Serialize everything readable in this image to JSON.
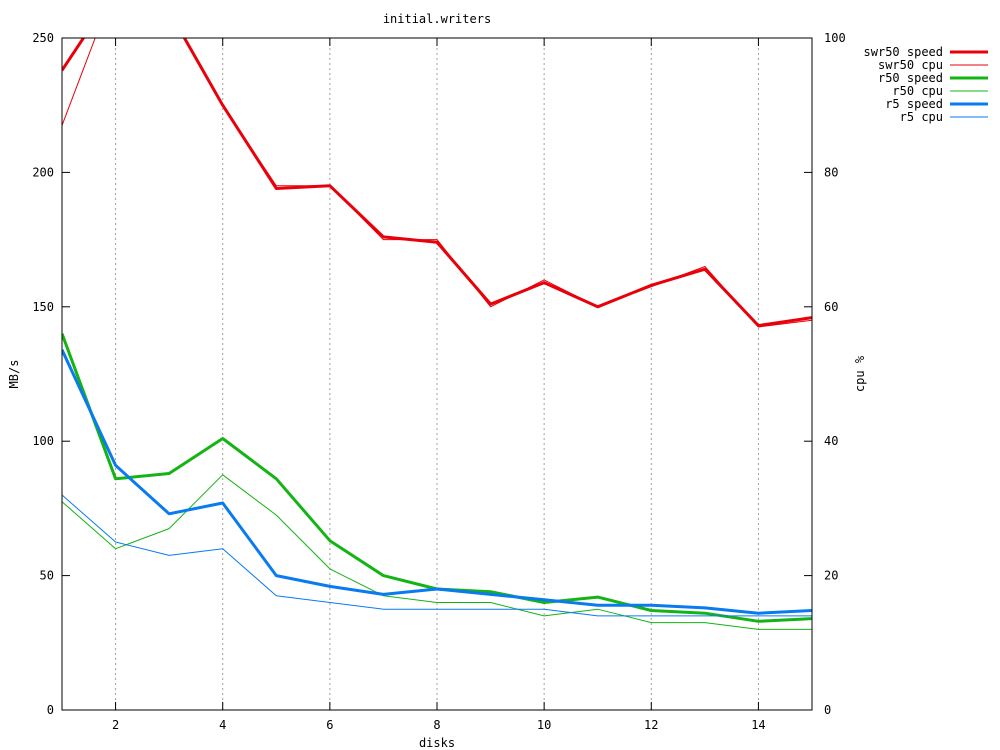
{
  "chart_data": {
    "type": "line",
    "title": "initial.writers",
    "xlabel": "disks",
    "ylabel": "MB/s",
    "y2label": "cpu %",
    "xlim": [
      1,
      15
    ],
    "ylim": [
      0,
      250
    ],
    "y2lim": [
      0,
      100
    ],
    "x_ticks": [
      2,
      4,
      6,
      8,
      10,
      12,
      14
    ],
    "y_ticks": [
      0,
      50,
      100,
      150,
      200,
      250
    ],
    "y2_ticks": [
      0,
      20,
      40,
      60,
      80,
      100
    ],
    "grid": "vertical-dotted",
    "legend_position": "top-right-outside",
    "x": [
      1,
      2,
      3,
      4,
      5,
      6,
      7,
      8,
      9,
      10,
      11,
      12,
      13,
      14,
      15
    ],
    "series": [
      {
        "name": "swr50 speed",
        "axis": "y",
        "color": "#e8000b",
        "width": 3,
        "values": [
          238,
          268,
          260,
          225,
          194,
          195,
          176,
          174,
          151,
          159,
          150,
          158,
          164,
          143,
          146
        ]
      },
      {
        "name": "swr50 cpu",
        "axis": "y2",
        "color": "#e8000b",
        "width": 1,
        "values": [
          87,
          108,
          104,
          90,
          78,
          78,
          70,
          70,
          60,
          64,
          60,
          63,
          66,
          57,
          58
        ]
      },
      {
        "name": "r50 speed",
        "axis": "y",
        "color": "#13b413",
        "width": 3,
        "values": [
          140,
          86,
          88,
          101,
          86,
          63,
          50,
          45,
          44,
          40,
          42,
          37,
          36,
          33,
          34
        ]
      },
      {
        "name": "r50 cpu",
        "axis": "y2",
        "color": "#13b413",
        "width": 1,
        "values": [
          31,
          24,
          27,
          35,
          29,
          21,
          17,
          16,
          16,
          14,
          15,
          13,
          13,
          12,
          12
        ]
      },
      {
        "name": "r5 speed",
        "axis": "y",
        "color": "#0a7af0",
        "width": 3,
        "values": [
          134,
          91,
          73,
          77,
          50,
          46,
          43,
          45,
          43,
          41,
          39,
          39,
          38,
          36,
          37
        ]
      },
      {
        "name": "r5 cpu",
        "axis": "y2",
        "color": "#0a7af0",
        "width": 1,
        "values": [
          32,
          25,
          23,
          24,
          17,
          16,
          15,
          15,
          15,
          15,
          14,
          14,
          14,
          14,
          14
        ]
      }
    ]
  }
}
